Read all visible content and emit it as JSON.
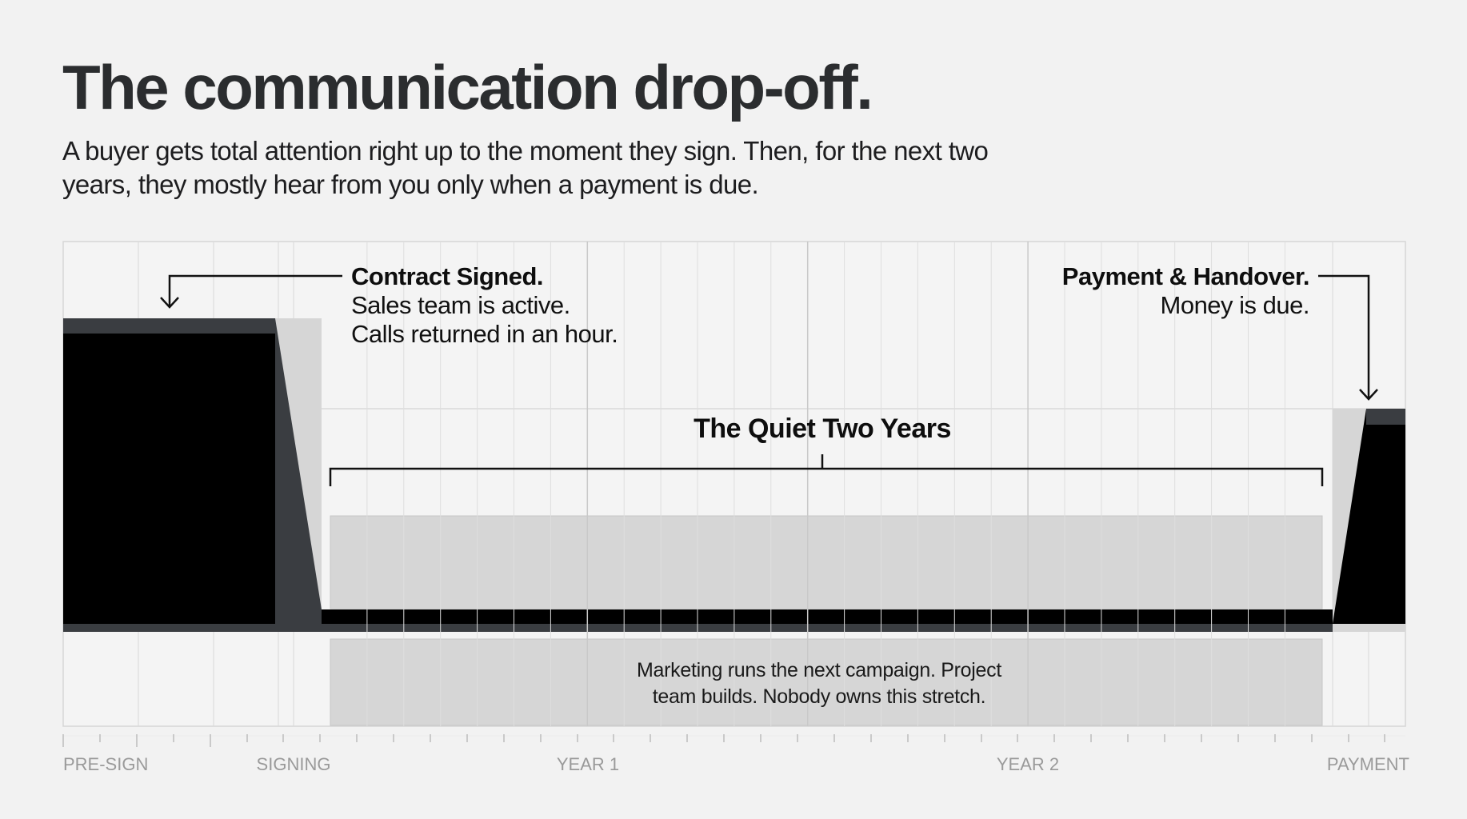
{
  "heading": {
    "title": "The communication drop-off.",
    "subtitle": "A buyer gets total attention right up to the moment they sign. Then, for the next two years, they mostly hear from you only when a payment is due."
  },
  "callouts": {
    "contract": {
      "head": "Contract Signed.",
      "line1": "Sales team is active.",
      "line2": "Calls returned in an hour."
    },
    "payment": {
      "head": "Payment & Handover.",
      "line1": "Money is due."
    }
  },
  "quiet_span": {
    "label": "The Quiet Two Years"
  },
  "stretch_note": {
    "line1": "Marketing runs the next campaign. Project",
    "line2": "team builds. Nobody owns this stretch."
  },
  "timeline": {
    "labels": [
      "PRE-SIGN",
      "SIGNING",
      "YEAR 1",
      "YEAR 2",
      "PAYMENT"
    ]
  },
  "colors": {
    "ink": "#000000",
    "slate": "#3a3d41",
    "shade": "#d6d6d6",
    "grid": "#d9d9d9",
    "background": "#f2f2f2"
  }
}
